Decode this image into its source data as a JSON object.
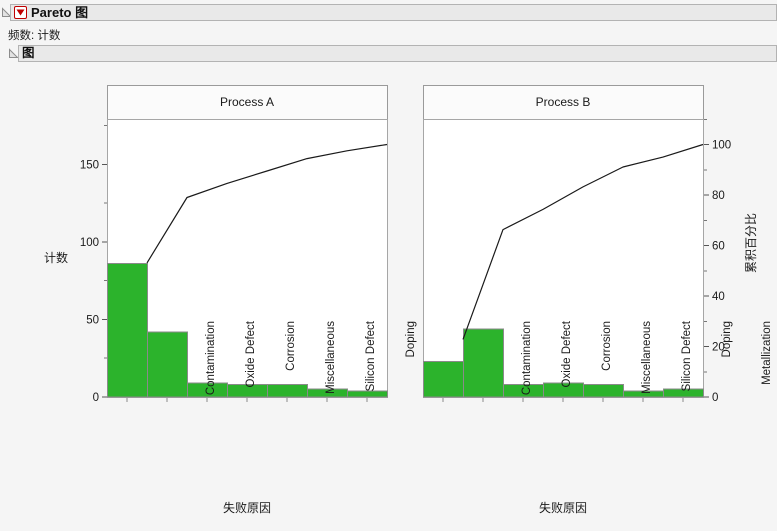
{
  "header": {
    "title": "Pareto 图",
    "frequency_label": "频数: 计数",
    "section_title": "图"
  },
  "chart_data": {
    "type": "pareto",
    "categories": [
      "Contamination",
      "Oxide Defect",
      "Corrosion",
      "Miscellaneous",
      "Silicon Defect",
      "Doping",
      "Metallization"
    ],
    "xlabel": "失败原因",
    "count_axis": {
      "label": "计数",
      "ticks": [
        0,
        50,
        100,
        150
      ],
      "minor_ticks": [
        25,
        75,
        125,
        175
      ],
      "range": [
        0,
        179
      ]
    },
    "percent_axis": {
      "label": "累积百分比",
      "ticks": [
        0,
        20,
        40,
        60,
        80,
        100
      ],
      "minor_ticks": [
        10,
        30,
        50,
        70,
        90,
        110
      ],
      "range": [
        0,
        110
      ]
    },
    "series": [
      {
        "name": "Process A",
        "values": [
          86,
          42,
          9,
          8,
          8,
          5,
          4
        ],
        "total": 162,
        "cumulative_pct": [
          53.1,
          79.0,
          84.6,
          89.5,
          94.4,
          97.5,
          100.0
        ]
      },
      {
        "name": "Process B",
        "values": [
          23,
          44,
          8,
          9,
          8,
          4,
          5
        ],
        "total": 101,
        "cumulative_pct": [
          22.8,
          66.3,
          74.3,
          83.2,
          91.1,
          95.0,
          100.0
        ]
      }
    ],
    "grid": false,
    "legend": "none"
  },
  "colors": {
    "bar": "#2cb32c",
    "bar_border": "#8a8a8a",
    "curve": "#1a1a1a",
    "accent_red": "#c00000",
    "band_bg": "#e9e9e9",
    "panel_title_bg": "#fbfbfb",
    "frame_border": "#a6a6a6",
    "page_bg": "#f5f5f5"
  }
}
